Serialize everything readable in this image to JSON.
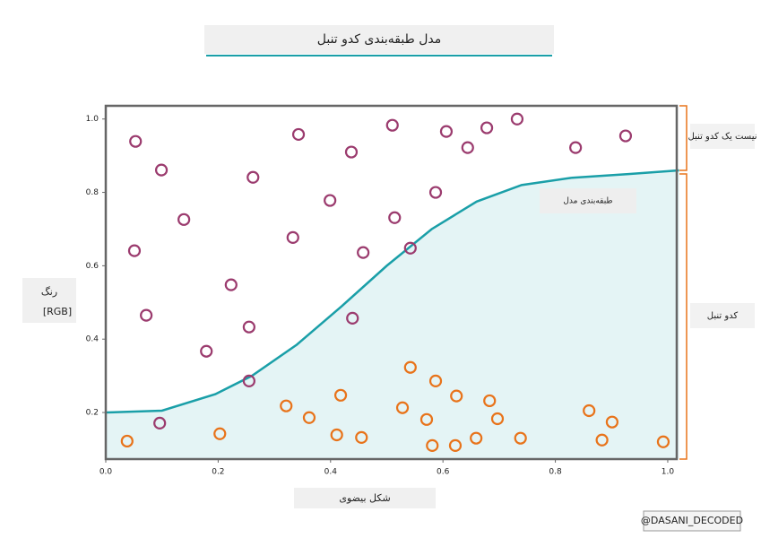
{
  "chart_data": {
    "type": "scatter",
    "title": "مدل طبقه‌بندی کدو تنبل",
    "x_label": "شکل بیضوی",
    "y_label": [
      "رنگ",
      "[RGB]"
    ],
    "watermark": "@DASANI_DECODED",
    "xlim": [
      0,
      1.016
    ],
    "ylim": [
      0.073,
      1.036
    ],
    "xticks": [
      {
        "value": 0,
        "label": "0.0"
      },
      0.2,
      0.4,
      0.6,
      0.8,
      {
        "value": 1,
        "label": "1.0"
      }
    ],
    "yticks": [
      0.2,
      0.4,
      0.6,
      0.8,
      {
        "value": 1,
        "label": "1.0"
      }
    ],
    "series": [
      {
        "name": "طبقه‌بندی مدل",
        "type": "line",
        "color": "#1a9fa8",
        "x": [
          0,
          0.1,
          0.195,
          0.26,
          0.34,
          0.42,
          0.5,
          0.58,
          0.66,
          0.74,
          0.83,
          0.93,
          1.02
        ],
        "values": [
          0.2,
          0.205,
          0.25,
          0.3,
          0.385,
          0.49,
          0.6,
          0.7,
          0.775,
          0.82,
          0.84,
          0.85,
          0.86
        ]
      },
      {
        "name": "کدو تنبل",
        "type": "scatter",
        "color": "#e8731a",
        "side": "bottom",
        "x": [
          0.038,
          0.203,
          0.321,
          0.362,
          0.411,
          0.418,
          0.455,
          0.528,
          0.542,
          0.571,
          0.581,
          0.587,
          0.622,
          0.624,
          0.659,
          0.683,
          0.697,
          0.738,
          0.86,
          0.883,
          0.901,
          0.992
        ],
        "values": [
          0.122,
          0.142,
          0.218,
          0.186,
          0.139,
          0.247,
          0.132,
          0.213,
          0.323,
          0.181,
          0.11,
          0.286,
          0.11,
          0.245,
          0.13,
          0.232,
          0.183,
          0.13,
          0.205,
          0.125,
          0.174,
          0.12
        ]
      },
      {
        "name": "نیست یک کدو تنبل",
        "type": "scatter",
        "color": "#9b3b6e",
        "side": "top",
        "x": [
          0.053,
          0.099,
          0.051,
          0.072,
          0.139,
          0.262,
          0.223,
          0.255,
          0.179,
          0.096,
          0.343,
          0.437,
          0.399,
          0.333,
          0.458,
          0.514,
          0.439,
          0.51,
          0.542,
          0.587,
          0.606,
          0.644,
          0.678,
          0.732,
          0.836,
          0.925,
          0.255
        ],
        "values": [
          0.939,
          0.861,
          0.641,
          0.465,
          0.726,
          0.841,
          0.548,
          0.433,
          0.367,
          0.171,
          0.958,
          0.91,
          0.778,
          0.677,
          0.636,
          0.731,
          0.457,
          0.983,
          0.648,
          0.8,
          0.966,
          0.922,
          0.976,
          1.0,
          0.922,
          0.954,
          0.286
        ]
      }
    ]
  }
}
